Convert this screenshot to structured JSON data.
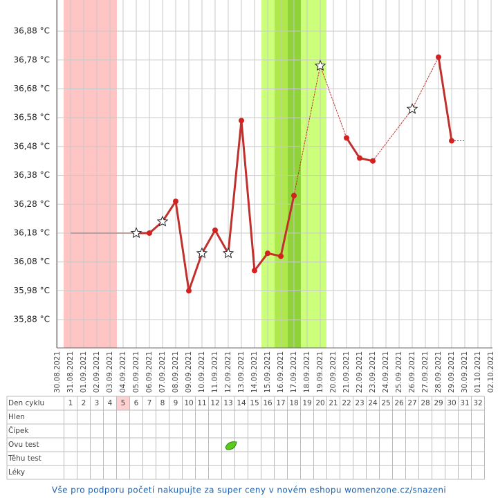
{
  "chart_data": {
    "type": "line",
    "categories": [
      "30.08.2021",
      "31.08.2021",
      "01.09.2021",
      "02.09.2021",
      "03.09.2021",
      "04.09.2021",
      "05.09.2021",
      "06.09.2021",
      "07.09.2021",
      "08.09.2021",
      "09.09.2021",
      "10.09.2021",
      "11.09.2021",
      "12.09.2021",
      "13.09.2021",
      "14.09.2021",
      "15.09.2021",
      "16.09.2021",
      "17.09.2021",
      "18.09.2021",
      "19.09.2021",
      "20.09.2021",
      "21.09.2021",
      "22.09.2021",
      "23.09.2021",
      "24.09.2021",
      "25.09.2021",
      "26.09.2021",
      "27.09.2021",
      "28.09.2021",
      "29.09.2021",
      "30.09.2021",
      "01.10.2021",
      "02.10.2021"
    ],
    "series": [
      {
        "color": "#c0312d",
        "values": [
          null,
          null,
          null,
          null,
          null,
          null,
          36.18,
          36.18,
          36.22,
          36.29,
          35.98,
          36.11,
          36.19,
          36.11,
          36.57,
          36.05,
          36.11,
          36.1,
          36.31,
          null,
          36.76,
          null,
          36.51,
          36.44,
          36.43,
          null,
          null,
          36.61,
          null,
          36.79,
          36.5,
          null,
          null,
          null
        ],
        "markers": [
          null,
          null,
          null,
          null,
          null,
          null,
          "star",
          "dot",
          "star",
          "dot",
          "dot",
          "star",
          "dot",
          "star",
          "dot",
          "dot",
          "dot",
          "dot",
          "dot",
          null,
          "star",
          null,
          "dot",
          "dot",
          "dot",
          null,
          null,
          "star",
          null,
          "dot",
          "dot",
          null,
          null,
          null
        ]
      }
    ],
    "ylim": [
      35.782,
      36.988
    ],
    "yticks": [
      {
        "value": 35.88,
        "label": "35,88 °C"
      },
      {
        "value": 35.98,
        "label": "35,98 °C"
      },
      {
        "value": 36.08,
        "label": "36,08 °C"
      },
      {
        "value": 36.18,
        "label": "36,18 °C"
      },
      {
        "value": 36.28,
        "label": "36,28 °C"
      },
      {
        "value": 36.38,
        "label": "36,38 °C"
      },
      {
        "value": 36.48,
        "label": "36,48 °C"
      },
      {
        "value": 36.58,
        "label": "36,58 °C"
      },
      {
        "value": 36.68,
        "label": "36,68 °C"
      },
      {
        "value": 36.78,
        "label": "36,78 °C"
      },
      {
        "value": 36.88,
        "label": "36,88 °C"
      }
    ],
    "grid": true
  },
  "table": {
    "row_labels": [
      "Den cyklu",
      "Hlen",
      "Čípek",
      "Ovu test",
      "Těhu test",
      "Léky"
    ],
    "days": [
      1,
      2,
      3,
      4,
      5,
      6,
      7,
      8,
      9,
      10,
      11,
      12,
      13,
      14,
      15,
      16,
      17,
      18,
      19,
      20,
      21,
      22,
      23,
      24,
      25,
      26,
      27,
      28,
      29,
      30,
      31,
      32
    ]
  },
  "footer": "Vše pro podporu početí nakupujte za super ceny v novém eshopu womenzone.cz/snazeni"
}
